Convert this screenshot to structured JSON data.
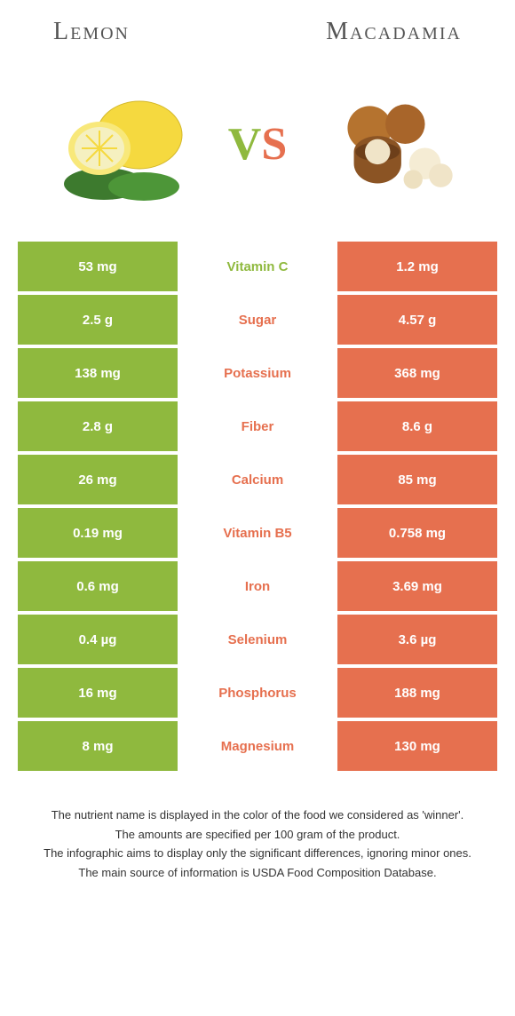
{
  "colors": {
    "left": "#8fb93e",
    "right": "#e6704f",
    "text_on_color": "#ffffff",
    "background": "#ffffff"
  },
  "header": {
    "left_title": "Lemon",
    "right_title": "Macadamia"
  },
  "vs": {
    "v": "V",
    "s": "S"
  },
  "rows": [
    {
      "left": "53 mg",
      "label": "Vitamin C",
      "right": "1.2 mg",
      "winner": "left"
    },
    {
      "left": "2.5 g",
      "label": "Sugar",
      "right": "4.57 g",
      "winner": "right"
    },
    {
      "left": "138 mg",
      "label": "Potassium",
      "right": "368 mg",
      "winner": "right"
    },
    {
      "left": "2.8 g",
      "label": "Fiber",
      "right": "8.6 g",
      "winner": "right"
    },
    {
      "left": "26 mg",
      "label": "Calcium",
      "right": "85 mg",
      "winner": "right"
    },
    {
      "left": "0.19 mg",
      "label": "Vitamin B5",
      "right": "0.758 mg",
      "winner": "right"
    },
    {
      "left": "0.6 mg",
      "label": "Iron",
      "right": "3.69 mg",
      "winner": "right"
    },
    {
      "left": "0.4 µg",
      "label": "Selenium",
      "right": "3.6 µg",
      "winner": "right"
    },
    {
      "left": "16 mg",
      "label": "Phosphorus",
      "right": "188 mg",
      "winner": "right"
    },
    {
      "left": "8 mg",
      "label": "Magnesium",
      "right": "130 mg",
      "winner": "right"
    }
  ],
  "footer": {
    "line1": "The nutrient name is displayed in the color of the food we considered as 'winner'.",
    "line2": "The amounts are specified per 100 gram of the product.",
    "line3": "The infographic aims to display only the significant differences, ignoring minor ones.",
    "line4": "The main source of information is USDA Food Composition Database."
  }
}
